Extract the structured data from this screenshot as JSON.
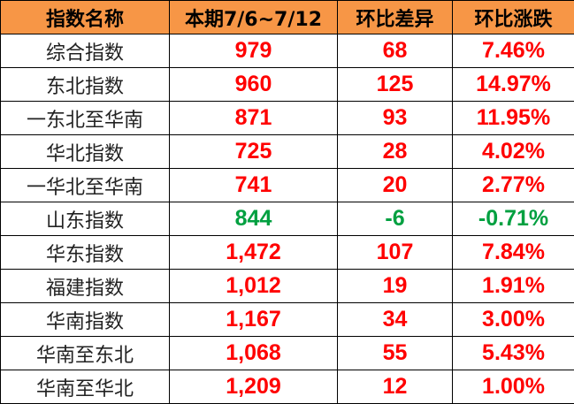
{
  "headers": [
    "指数名称",
    "本期7/6~7/12",
    "环比差异",
    "环比涨跌"
  ],
  "colors": {
    "header_bg": "#F79646",
    "up": "#FF0000",
    "down": "#00A040"
  },
  "rows": [
    {
      "name": "综合指数",
      "current": "979",
      "diff": "68",
      "pct": "7.46%",
      "trend": "up"
    },
    {
      "name": "东北指数",
      "current": "960",
      "diff": "125",
      "pct": "14.97%",
      "trend": "up"
    },
    {
      "name": "一东北至华南",
      "current": "871",
      "diff": "93",
      "pct": "11.95%",
      "trend": "up"
    },
    {
      "name": "华北指数",
      "current": "725",
      "diff": "28",
      "pct": "4.02%",
      "trend": "up"
    },
    {
      "name": "一华北至华南",
      "current": "741",
      "diff": "20",
      "pct": "2.77%",
      "trend": "up"
    },
    {
      "name": "山东指数",
      "current": "844",
      "diff": "-6",
      "pct": "-0.71%",
      "trend": "down"
    },
    {
      "name": "华东指数",
      "current": "1,472",
      "diff": "107",
      "pct": "7.84%",
      "trend": "up"
    },
    {
      "name": "福建指数",
      "current": "1,012",
      "diff": "19",
      "pct": "1.91%",
      "trend": "up"
    },
    {
      "name": "华南指数",
      "current": "1,167",
      "diff": "34",
      "pct": "3.00%",
      "trend": "up"
    },
    {
      "name": "华南至东北",
      "current": "1,068",
      "diff": "55",
      "pct": "5.43%",
      "trend": "up"
    },
    {
      "name": "华南至华北",
      "current": "1,209",
      "diff": "12",
      "pct": "1.00%",
      "trend": "up"
    }
  ]
}
